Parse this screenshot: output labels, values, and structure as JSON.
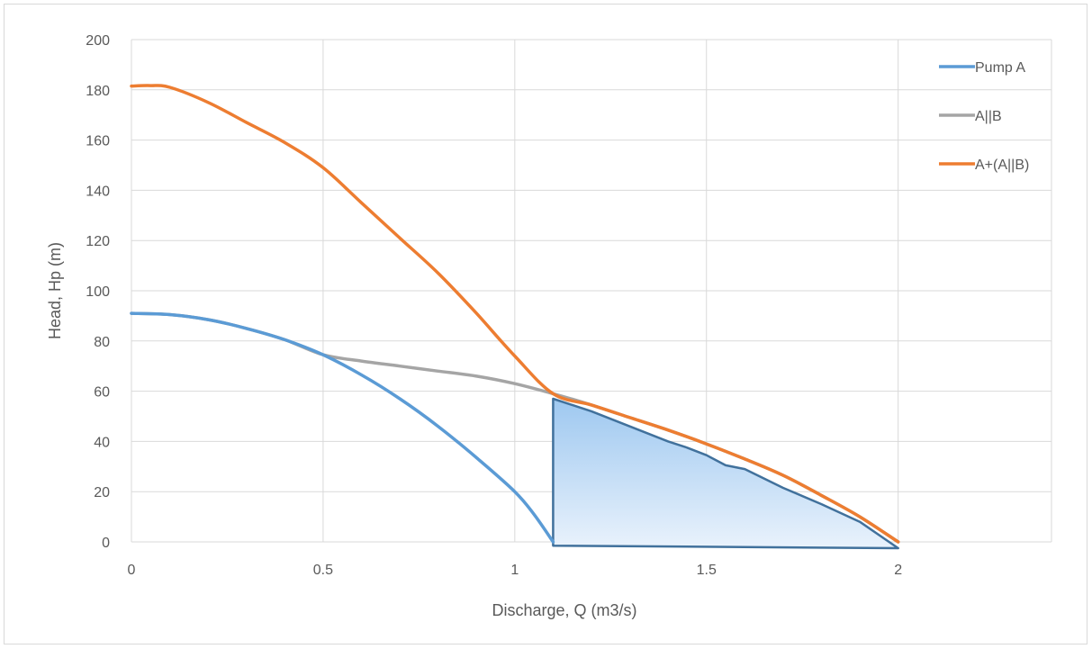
{
  "chart_data": {
    "type": "line",
    "title": "",
    "xlabel": "Discharge, Q (m3/s)",
    "ylabel": "Head, Hp (m)",
    "xlim": [
      0,
      2.4
    ],
    "ylim": [
      0,
      200
    ],
    "x_ticks": [
      0,
      0.5,
      1,
      1.5,
      2
    ],
    "x_tick_labels": [
      "0",
      "0.5",
      "1",
      "1.5",
      "2"
    ],
    "y_ticks": [
      0,
      20,
      40,
      60,
      80,
      100,
      120,
      140,
      160,
      180,
      200
    ],
    "y_tick_labels": [
      "0",
      "20",
      "40",
      "60",
      "80",
      "100",
      "120",
      "140",
      "160",
      "180",
      "200"
    ],
    "grid": true,
    "legend_position": "top-right",
    "series": [
      {
        "name": "Pump A",
        "color": "#5b9bd5",
        "x": [
          0,
          0.1,
          0.2,
          0.3,
          0.4,
          0.5,
          0.6,
          0.7,
          0.8,
          0.9,
          1.0,
          1.05,
          1.1
        ],
        "y": [
          91,
          90.5,
          88.5,
          85,
          80.5,
          74.5,
          66.5,
          57,
          46,
          33.5,
          20,
          11,
          0
        ]
      },
      {
        "name": "A||B",
        "color": "#a5a5a5",
        "x": [
          0,
          0.1,
          0.2,
          0.3,
          0.4,
          0.5,
          0.6,
          0.7,
          0.8,
          0.9,
          1.0,
          1.1,
          1.2,
          1.3,
          1.4,
          1.5,
          1.6,
          1.7,
          1.8,
          1.9,
          2.0
        ],
        "y": [
          91,
          90.5,
          88.5,
          85,
          80.5,
          74.5,
          72,
          70,
          68,
          66,
          63,
          59,
          54.5,
          49.5,
          44.5,
          39,
          33,
          26.5,
          18.5,
          10,
          0
        ]
      },
      {
        "name": "A+(A||B)",
        "color": "#ed7d31",
        "x": [
          0,
          0.05,
          0.1,
          0.2,
          0.3,
          0.4,
          0.5,
          0.6,
          0.7,
          0.8,
          0.9,
          1.0,
          1.1,
          1.2,
          1.3,
          1.4,
          1.5,
          1.6,
          1.7,
          1.8,
          1.9,
          2.0
        ],
        "y": [
          181.5,
          181.7,
          181,
          175,
          167,
          159,
          149,
          135,
          121,
          107,
          91,
          74,
          59,
          54.5,
          49.5,
          44.5,
          39,
          33,
          26.5,
          18.5,
          10,
          0
        ]
      }
    ],
    "shaded_region": {
      "fill_top": "#9ec8f0",
      "fill_bottom": "#e9f2fc",
      "stroke": "#41719c",
      "x": [
        1.1,
        1.1,
        1.2,
        1.3,
        1.4,
        1.45,
        1.5,
        1.55,
        1.6,
        1.7,
        1.8,
        1.9,
        2.0,
        1.1
      ],
      "y": [
        -1.5,
        57,
        52,
        46,
        40,
        37.5,
        34.5,
        30.5,
        29,
        21.5,
        15,
        8,
        -2.5,
        -1.5
      ]
    }
  }
}
